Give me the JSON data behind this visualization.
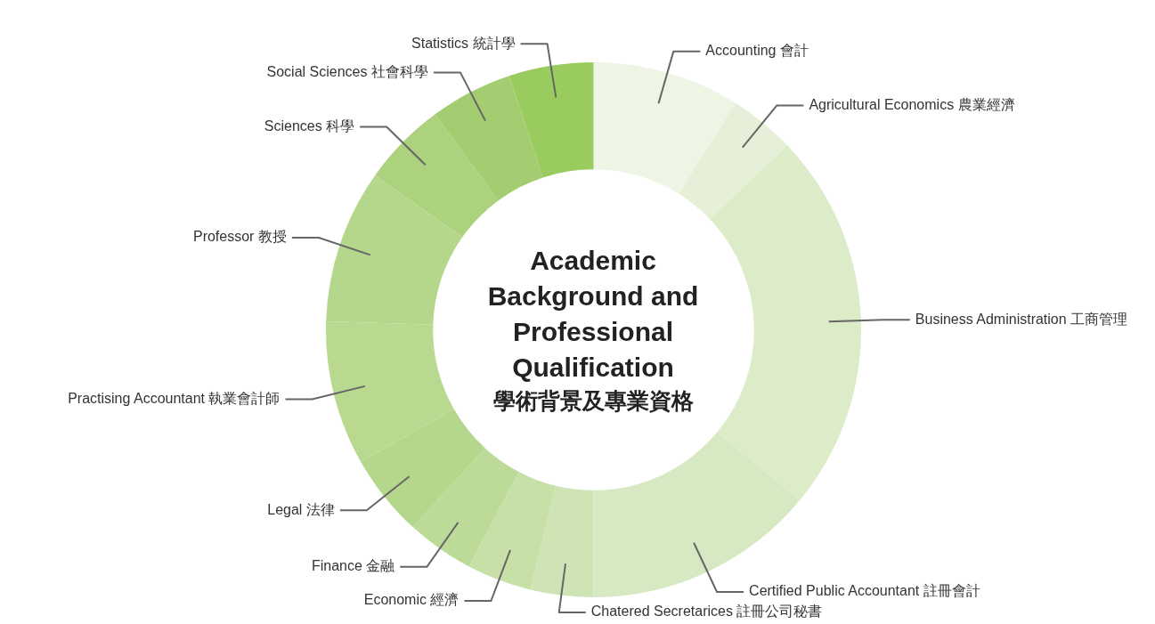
{
  "chart_data": {
    "type": "donut",
    "title": "Academic Background and Professional Qualification",
    "subtitle": "學術背景及專業資格",
    "categories": [
      "Accounting 會計",
      "Agricultural Economics 農業經濟",
      "Business Administration 工商管理",
      "Certified Public Accountant 註冊會計",
      "Chatered Secretarices 註冊公司秘書",
      "Economic 經濟",
      "Finance 金融",
      "Legal 法律",
      "Practising Accountant 執業會計師",
      "Professor 教授",
      "Sciences 科學",
      "Social Sciences 社會科學",
      "Statistics 統計學"
    ],
    "values": [
      8.9,
      4.0,
      23.1,
      14.0,
      3.8,
      3.9,
      4.1,
      5.0,
      8.7,
      9.3,
      5.1,
      5.0,
      5.1
    ],
    "colors": [
      "#eef5e4",
      "#e6f0d8",
      "#dcebc8",
      "#d7e9c2",
      "#cfe4b5",
      "#c6e0a8",
      "#bcdb98",
      "#b4d78c",
      "#b8d98f",
      "#b5d78b",
      "#acd27e",
      "#a3cd70",
      "#9acb5e"
    ]
  }
}
